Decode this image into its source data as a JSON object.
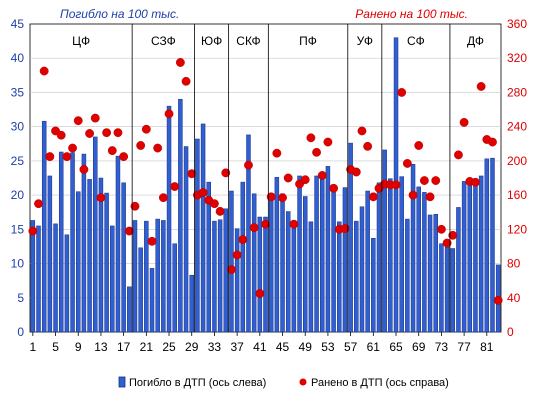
{
  "chart_data": {
    "type": "bar+scatter",
    "header_left": "Погибло на 100 тыс.",
    "header_right": "Ранено на 100 тыс.",
    "left_axis": {
      "min": 0,
      "max": 45,
      "step": 5,
      "color": "#1f3fa8"
    },
    "right_axis": {
      "min": 0,
      "max": 360,
      "step": 40,
      "color": "#e00000"
    },
    "x_ticks": [
      1,
      5,
      9,
      13,
      17,
      21,
      25,
      29,
      33,
      37,
      41,
      45,
      49,
      53,
      57,
      61,
      65,
      69,
      73,
      77,
      81
    ],
    "regions": [
      {
        "label": "ЦФ",
        "start": 1,
        "end": 18
      },
      {
        "label": "СЗФ",
        "start": 19,
        "end": 29
      },
      {
        "label": "ЮФ",
        "start": 30,
        "end": 35
      },
      {
        "label": "СКФ",
        "start": 36,
        "end": 42
      },
      {
        "label": "ПФ",
        "start": 43,
        "end": 56
      },
      {
        "label": "УФ",
        "start": 57,
        "end": 62
      },
      {
        "label": "СФ",
        "start": 63,
        "end": 74
      },
      {
        "label": "ДФ",
        "start": 75,
        "end": 83
      }
    ],
    "series": [
      {
        "name": "Погибло в ДТП (ось слева)",
        "axis": "left",
        "kind": "bar",
        "color": "#2f5fd0",
        "values": [
          16.3,
          15.5,
          30.8,
          22.8,
          15.8,
          26.3,
          14.2,
          26.2,
          20.5,
          26.0,
          22.3,
          28.5,
          22.5,
          20.3,
          15.5,
          25.7,
          21.8,
          6.6,
          16.3,
          12.3,
          16.2,
          9.3,
          16.5,
          16.3,
          33.0,
          12.9,
          34.0,
          27.1,
          8.3,
          28.2,
          30.4,
          21.9,
          16.2,
          16.4,
          18.0,
          20.6,
          15.1,
          21.9,
          28.8,
          20.2,
          16.8,
          16.8,
          20.1,
          22.6,
          20.2,
          17.6,
          16.1,
          22.8,
          19.8,
          16.1,
          22.8,
          23.3,
          24.2,
          20.6,
          16.1,
          21.1,
          27.6,
          16.2,
          18.3,
          20.6,
          13.7,
          21.8,
          26.6,
          22.4,
          43.0,
          22.7,
          16.5,
          24.5,
          21.2,
          20.4,
          17.1,
          17.2,
          12.9,
          12.4,
          12.2,
          18.2,
          22.0,
          22.0,
          21.8,
          22.8,
          25.3,
          25.4,
          9.8
        ]
      },
      {
        "name": "Ранено в ДТП (ось справа)",
        "axis": "right",
        "kind": "scatter",
        "color": "#e00000",
        "values": [
          118,
          150,
          305,
          205,
          235,
          230,
          205,
          215,
          247,
          190,
          232,
          250,
          157,
          233,
          212,
          233,
          205,
          118,
          147,
          218,
          237,
          106,
          215,
          157,
          255,
          170,
          315,
          293,
          185,
          160,
          163,
          154,
          150,
          141,
          186,
          73,
          90,
          108,
          195,
          122,
          45,
          126,
          158,
          209,
          157,
          180,
          126,
          173,
          178,
          227,
          210,
          183,
          222,
          168,
          120,
          121,
          190,
          187,
          235,
          217,
          158,
          168,
          173,
          172,
          172,
          280,
          197,
          160,
          218,
          177,
          158,
          177,
          120,
          104,
          113,
          207,
          245,
          176,
          175,
          287,
          225,
          222,
          37
        ]
      }
    ]
  }
}
